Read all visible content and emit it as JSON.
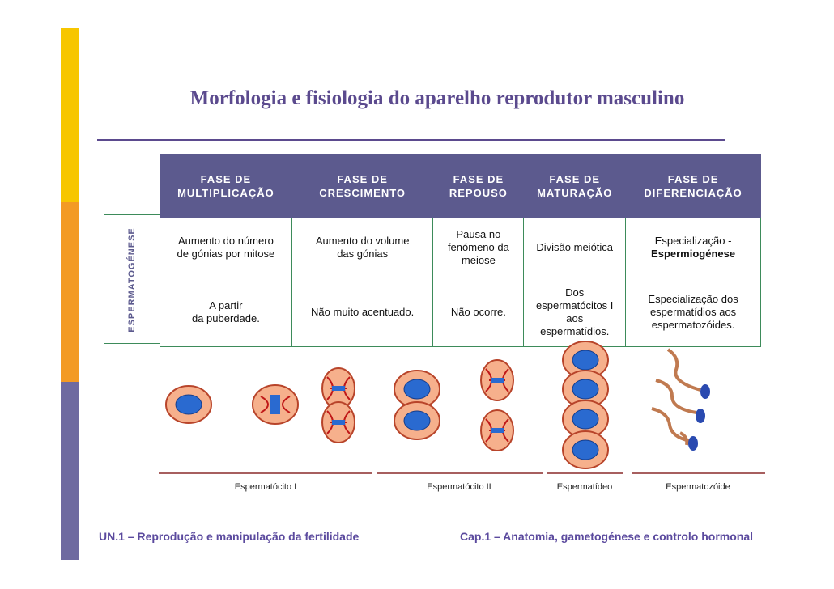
{
  "title": "Morfologia e fisiologia do aparelho reprodutor masculino",
  "table": {
    "side_label": "ESPERMATOGÉNESE",
    "header": [
      [
        "FASE DE",
        "MULTIPLICAÇÃO"
      ],
      [
        "FASE DE",
        "CRESCIMENTO"
      ],
      [
        "FASE DE",
        "REPOUSO"
      ],
      [
        "FASE DE",
        "MATURAÇÃO"
      ],
      [
        "FASE DE",
        "DIFERENCIAÇÃO"
      ]
    ],
    "rows": [
      [
        [
          "Aumento do número",
          "de gónias por mitose"
        ],
        [
          "Aumento do volume",
          "das gónias"
        ],
        [
          "Pausa no",
          "fenómeno da",
          "meiose"
        ],
        [
          "Divisão meiótica"
        ],
        [
          "Especialização -",
          "Espermiogénese"
        ]
      ],
      [
        [
          "A partir",
          "da puberdade."
        ],
        [
          "Não muito acentuado."
        ],
        [
          "Não ocorre."
        ],
        [
          "Dos",
          "espermatócitos I",
          "aos",
          "espermatídios."
        ],
        [
          "Especialização dos",
          "espermatídios aos",
          "espermatozóides."
        ]
      ]
    ]
  },
  "stages": [
    "Espermatócito I",
    "Espermatócito II",
    "Espermatídeo",
    "Espermatozóide"
  ],
  "footer": {
    "left": "UN.1 – Reprodução e manipulação da fertilidade",
    "right": "Cap.1 – Anatomia, gametogénese e controlo hormonal"
  }
}
